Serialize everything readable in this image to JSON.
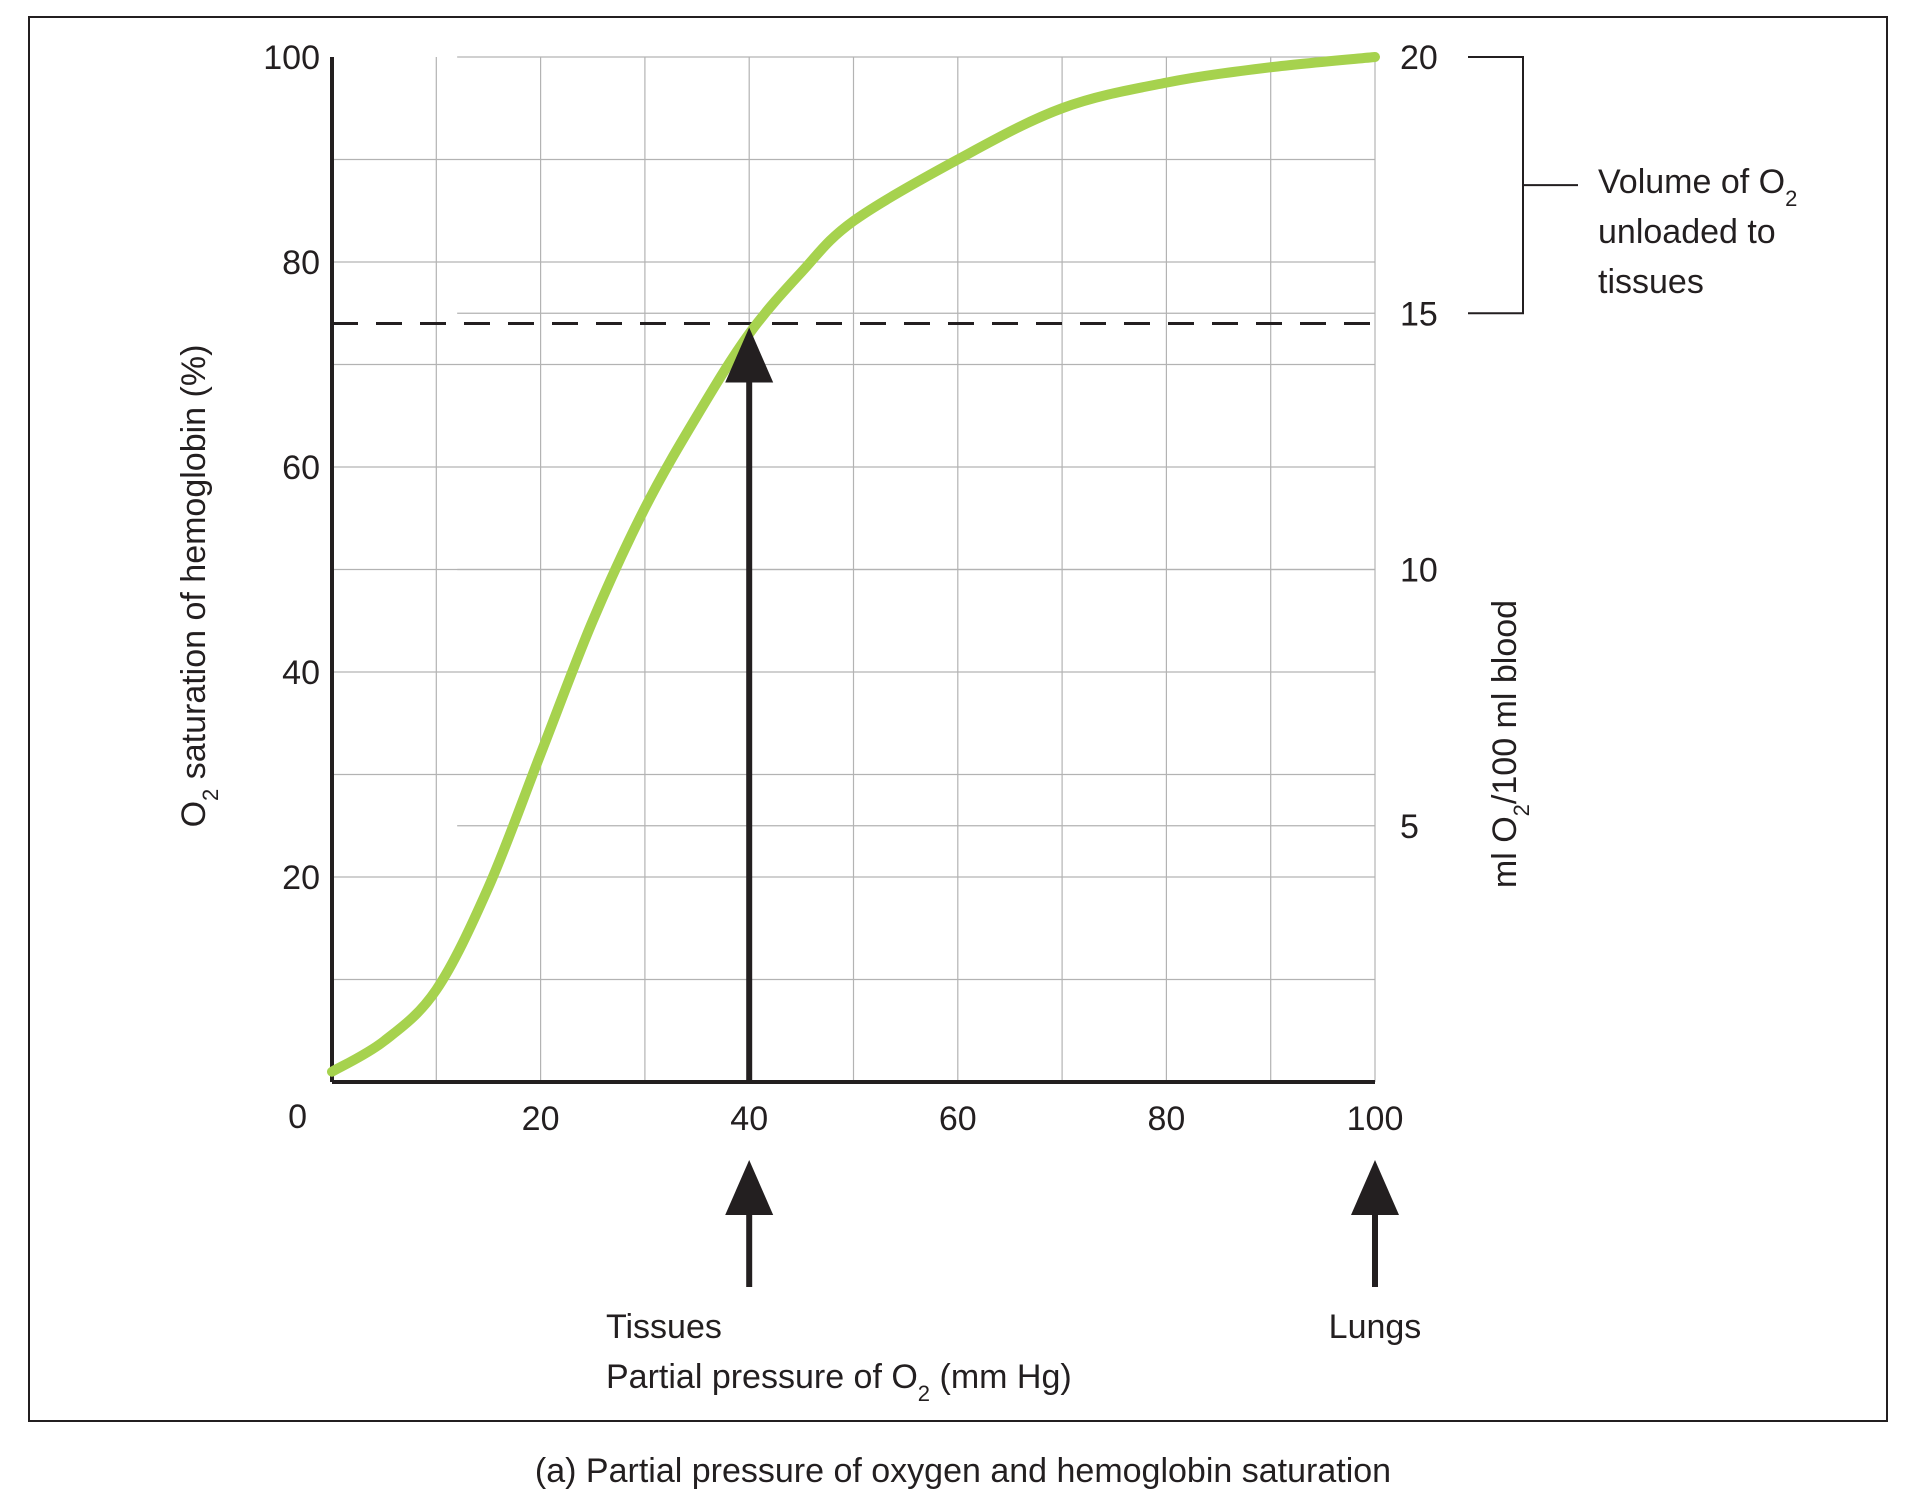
{
  "chart_data": {
    "type": "line",
    "x": [
      0,
      5,
      10,
      15,
      20,
      25,
      30,
      35,
      40,
      45,
      50,
      60,
      70,
      80,
      90,
      100
    ],
    "series": [
      {
        "color": "#a6d24e",
        "values": [
          1,
          4,
          9,
          19,
          32,
          45,
          56,
          65,
          73,
          79,
          84,
          90,
          95,
          97.5,
          99,
          100
        ]
      }
    ],
    "xlim": [
      0,
      100
    ],
    "ylim": [
      0,
      100
    ],
    "y2lim": [
      0,
      20
    ],
    "xticks": [
      20,
      40,
      60,
      80,
      100
    ],
    "yticks": [
      0,
      20,
      40,
      60,
      80,
      100
    ],
    "y2ticks": [
      5,
      10,
      15,
      20
    ],
    "xgrid": [
      10,
      20,
      30,
      40,
      50,
      60,
      70,
      80,
      90,
      100
    ],
    "ygrid": [
      10,
      20,
      30,
      40,
      50,
      60,
      70,
      80,
      90
    ],
    "y_label": [
      "O",
      "2",
      " saturation of hemoglobin (%)"
    ],
    "y2_label": [
      "ml O",
      "2",
      "/100 ml blood"
    ],
    "x_label": [
      "Partial pressure of O",
      "2",
      " (mm Hg)"
    ],
    "reference_value": 74,
    "reference_x": 40,
    "markers": [
      {
        "x": 40,
        "label": "Tissues"
      },
      {
        "x": 100,
        "label": "Lungs"
      }
    ],
    "bracket": {
      "from": 15,
      "to": 20,
      "label": [
        [
          "Volume of O",
          "2"
        ],
        [
          "unloaded to"
        ],
        [
          "tissues"
        ]
      ]
    },
    "caption": "(a) Partial pressure of oxygen and hemoglobin saturation"
  }
}
